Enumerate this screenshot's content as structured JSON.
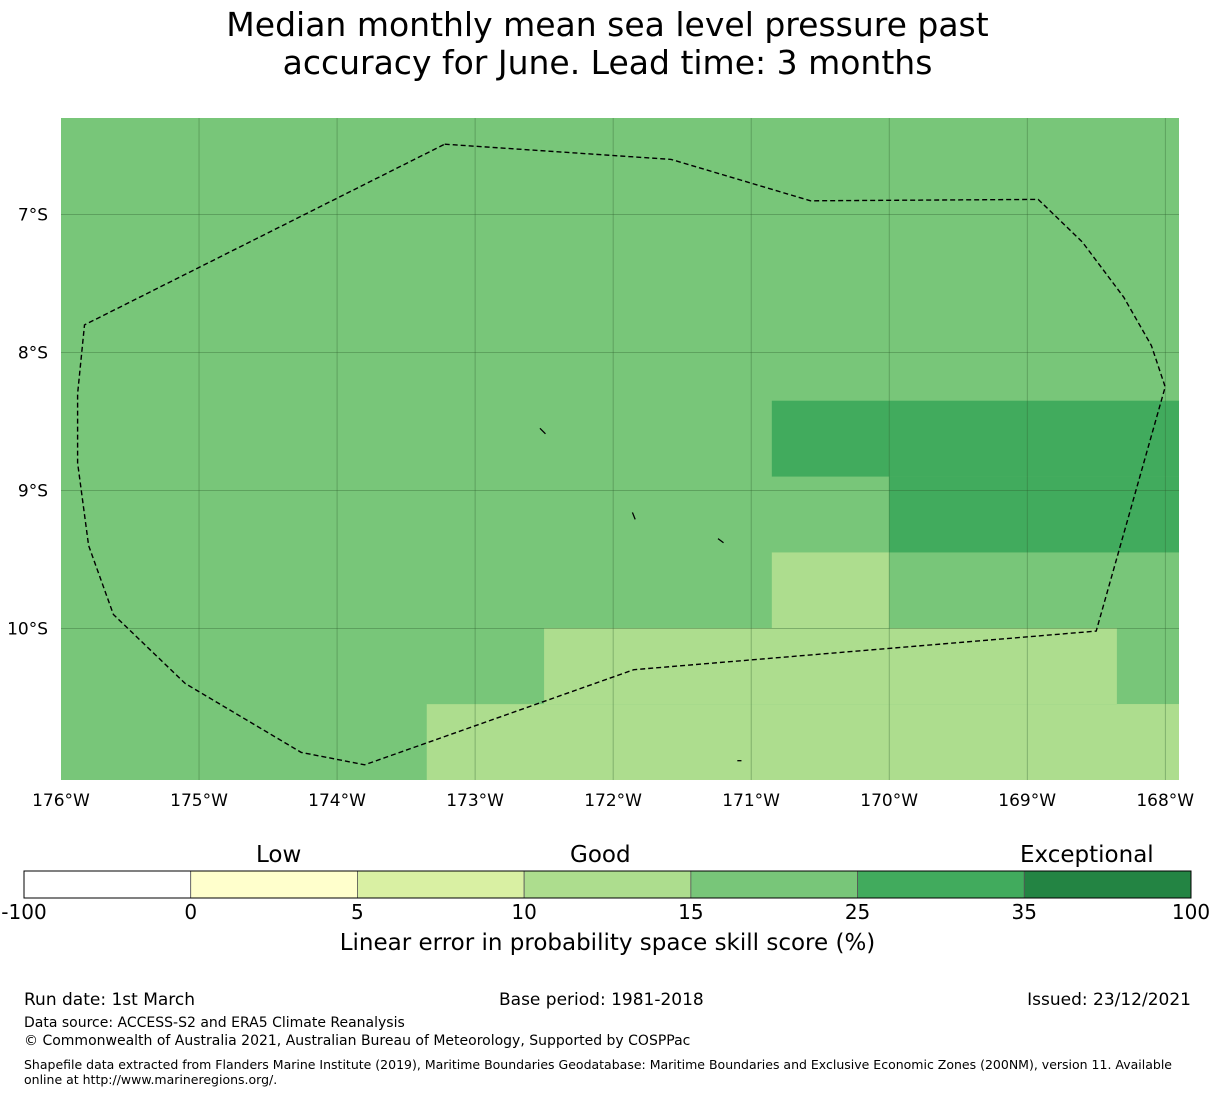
{
  "title": "Median monthly mean sea level pressure past\naccuracy for June. Lead time: 3 months",
  "map": {
    "lon_range": [
      -176.0,
      -167.9
    ],
    "lat_range": [
      -6.3,
      -11.1
    ],
    "lat_ticks": [
      {
        "value": -7,
        "label": "7°S"
      },
      {
        "value": -8,
        "label": "8°S"
      },
      {
        "value": -9,
        "label": "9°S"
      },
      {
        "value": -10,
        "label": "10°S"
      }
    ],
    "lon_ticks": [
      {
        "value": -176,
        "label": "176°W"
      },
      {
        "value": -175,
        "label": "175°W"
      },
      {
        "value": -174,
        "label": "174°W"
      },
      {
        "value": -173,
        "label": "173°W"
      },
      {
        "value": -172,
        "label": "172°W"
      },
      {
        "value": -171,
        "label": "171°W"
      },
      {
        "value": -170,
        "label": "170°W"
      },
      {
        "value": -169,
        "label": "169°W"
      },
      {
        "value": -168,
        "label": "168°W"
      }
    ],
    "background_category": "15-25",
    "cells": [
      {
        "lon0": -170.85,
        "lon1": -167.9,
        "lat0": -8.35,
        "lat1": -8.9,
        "category": "25-35"
      },
      {
        "lon0": -170.0,
        "lon1": -167.9,
        "lat0": -8.9,
        "lat1": -9.45,
        "category": "25-35"
      },
      {
        "lon0": -170.85,
        "lon1": -170.0,
        "lat0": -9.45,
        "lat1": -10.0,
        "category": "10-15"
      },
      {
        "lon0": -172.5,
        "lon1": -168.35,
        "lat0": -10.0,
        "lat1": -10.55,
        "category": "10-15"
      },
      {
        "lon0": -173.35,
        "lon1": -167.9,
        "lat0": -10.55,
        "lat1": -11.1,
        "category": "10-15"
      },
      {
        "lon0": -168.35,
        "lon1": -167.9,
        "lat0": -10.55,
        "lat1": -11.1,
        "category": "10-15"
      }
    ],
    "eez_boundary": [
      [
        -173.22,
        -6.49
      ],
      [
        -171.58,
        -6.6
      ],
      [
        -170.57,
        -6.9
      ],
      [
        -168.92,
        -6.89
      ],
      [
        -168.6,
        -7.2
      ],
      [
        -168.3,
        -7.6
      ],
      [
        -168.1,
        -7.95
      ],
      [
        -168.0,
        -8.25
      ],
      [
        -168.5,
        -10.02
      ],
      [
        -171.85,
        -10.3
      ],
      [
        -173.8,
        -10.99
      ],
      [
        -174.26,
        -10.9
      ],
      [
        -175.1,
        -10.4
      ],
      [
        -175.62,
        -9.9
      ],
      [
        -175.8,
        -9.4
      ],
      [
        -175.88,
        -8.8
      ],
      [
        -175.88,
        -8.3
      ],
      [
        -175.83,
        -7.8
      ],
      [
        -173.22,
        -6.49
      ]
    ],
    "islands": [
      [
        [
          -172.53,
          -8.55
        ],
        [
          -172.49,
          -8.59
        ]
      ],
      [
        [
          -171.86,
          -9.16
        ],
        [
          -171.84,
          -9.21
        ]
      ],
      [
        [
          -171.24,
          -9.35
        ],
        [
          -171.2,
          -9.38
        ]
      ],
      [
        [
          -171.1,
          -10.96
        ],
        [
          -171.07,
          -10.96
        ]
      ]
    ]
  },
  "colorbar": {
    "categories": [
      {
        "label": "Low",
        "position": "left"
      },
      {
        "label": "Good",
        "position": "center"
      },
      {
        "label": "Exceptional",
        "position": "right"
      }
    ],
    "ticks": [
      "-100",
      "0",
      "5",
      "10",
      "15",
      "25",
      "35",
      "100"
    ],
    "bins": [
      {
        "range": "-100-0",
        "color": "#ffffff"
      },
      {
        "range": "0-5",
        "color": "#ffffcc"
      },
      {
        "range": "5-10",
        "color": "#d9f0a3"
      },
      {
        "range": "10-15",
        "color": "#addd8e"
      },
      {
        "range": "15-25",
        "color": "#78c679"
      },
      {
        "range": "25-35",
        "color": "#41ab5d"
      },
      {
        "range": "35-100",
        "color": "#238443"
      }
    ],
    "label": "Linear error in probability space skill score (%)"
  },
  "footer": {
    "run_date": "Run date: 1st March",
    "base_period": "Base period: 1981-2018",
    "issued": "Issued: 23/12/2021",
    "data_source": "Data source: ACCESS-S2 and ERA5 Climate Reanalysis",
    "copyright": "© Commonwealth of Australia 2021, Australian Bureau of Meteorology, Supported by COSPPac",
    "shapefile": "Shapefile data extracted from Flanders Marine Institute (2019), Maritime Boundaries Geodatabase: Maritime Boundaries and Exclusive Economic Zones (200NM), version 11. Available online at http://www.marineregions.org/."
  }
}
